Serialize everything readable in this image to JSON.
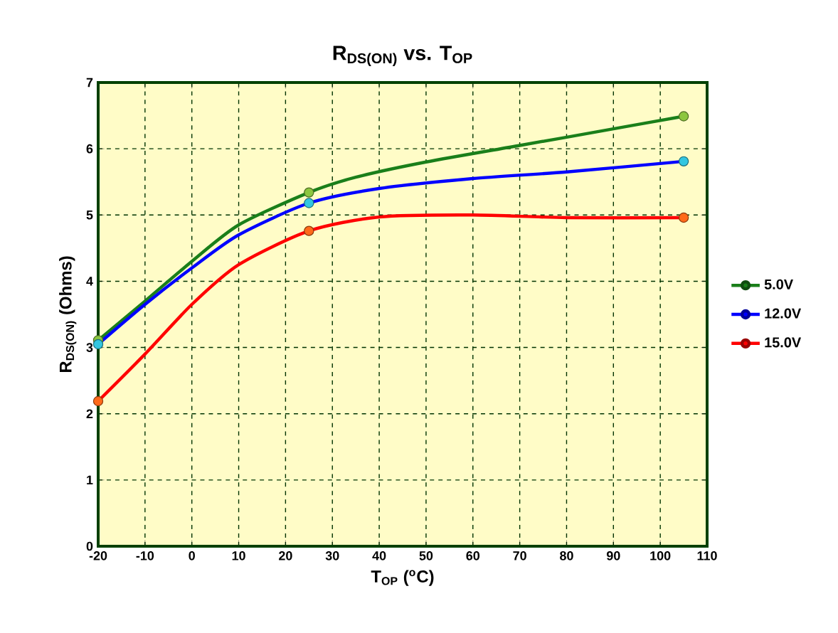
{
  "chart_data": {
    "type": "line",
    "title": "R$_{DS(ON)}$ vs. T$_{OP}$",
    "xlabel": "T$_{OP}$ ($^{o}$C)",
    "ylabel": "R$_{DS(ON)}$ (Ohms)",
    "xlim": [
      -20,
      110
    ],
    "xticks": [
      -20,
      -10,
      0,
      10,
      20,
      30,
      40,
      50,
      60,
      70,
      80,
      90,
      100,
      110
    ],
    "ylim": [
      0,
      7
    ],
    "yticks": [
      0,
      1,
      2,
      3,
      4,
      5,
      6,
      7
    ],
    "grid": true,
    "legend": "right",
    "series": [
      {
        "name": "5.0V",
        "marker": "none",
        "color": "#1a7f1a",
        "x": [
          -20,
          -10,
          0,
          10,
          25,
          35,
          50,
          70,
          90,
          105
        ],
        "values": [
          3.11,
          3.7,
          4.3,
          4.85,
          5.34,
          5.57,
          5.8,
          6.05,
          6.3,
          6.49
        ]
      },
      {
        "name": "12.0V",
        "marker": "none",
        "color": "#0000ff",
        "x": [
          -20,
          -10,
          0,
          10,
          25,
          40,
          60,
          80,
          105
        ],
        "values": [
          3.05,
          3.65,
          4.2,
          4.7,
          5.18,
          5.4,
          5.55,
          5.65,
          5.81
        ]
      },
      {
        "name": "15.0V",
        "marker": "none",
        "color": "#ff0000",
        "x": [
          -20,
          -10,
          0,
          10,
          25,
          40,
          60,
          80,
          105
        ],
        "values": [
          2.19,
          2.9,
          3.65,
          4.25,
          4.76,
          4.97,
          5.0,
          4.96,
          4.96
        ]
      },
      {
        "type": "scatter",
        "marker": "circle",
        "color": "#8cc63f",
        "x": [
          -20,
          25,
          105
        ],
        "values": [
          3.11,
          5.34,
          6.49
        ]
      },
      {
        "type": "scatter",
        "marker": "circle",
        "color": "#33c6e0",
        "x": [
          -20,
          25,
          105
        ],
        "values": [
          3.05,
          5.18,
          5.81
        ]
      },
      {
        "type": "scatter",
        "marker": "circle",
        "color": "#ff6a1a",
        "x": [
          -20,
          25,
          105
        ],
        "values": [
          2.19,
          4.76,
          4.96
        ]
      }
    ]
  }
}
